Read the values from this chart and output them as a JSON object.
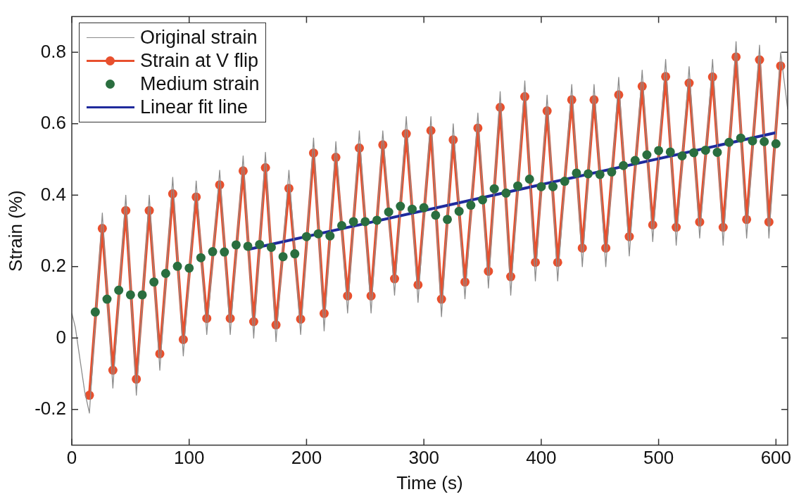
{
  "chart_data": {
    "type": "line",
    "xlabel": "Time (s)",
    "ylabel": "Strain (%)",
    "xlim": [
      0,
      610
    ],
    "ylim": [
      -0.3,
      0.9
    ],
    "xticks": [
      0,
      100,
      200,
      300,
      400,
      500,
      600
    ],
    "yticks": [
      -0.2,
      0,
      0.2,
      0.4,
      0.6,
      0.8
    ],
    "grid": false,
    "legend": "top left",
    "series": [
      {
        "name": "Original strain",
        "marker": "none",
        "color": "#8c8c8c",
        "x": [
          0,
          3,
          7,
          11,
          15,
          26,
          35,
          46,
          55,
          66,
          75,
          86,
          95,
          106,
          115,
          126,
          135,
          146,
          155,
          165,
          174,
          185,
          195,
          206,
          215,
          225,
          235,
          245,
          255,
          265,
          275,
          285,
          295,
          306,
          315,
          325,
          335,
          346,
          355,
          365,
          374,
          386,
          395,
          405,
          414,
          426,
          435,
          445,
          455,
          466,
          475,
          486,
          495,
          506,
          515,
          526,
          535,
          546,
          555,
          566,
          575,
          586,
          594,
          604,
          610
        ],
        "values": [
          0.07,
          0.03,
          -0.06,
          -0.15,
          -0.21,
          0.35,
          -0.14,
          0.4,
          -0.16,
          0.4,
          -0.09,
          0.45,
          -0.05,
          0.44,
          0.01,
          0.47,
          0.01,
          0.51,
          0,
          0.52,
          -0.01,
          0.47,
          0.01,
          0.56,
          0.02,
          0.55,
          0.07,
          0.58,
          0.07,
          0.58,
          0.12,
          0.62,
          0.1,
          0.62,
          0.06,
          0.6,
          0.11,
          0.63,
          0.14,
          0.69,
          0.12,
          0.72,
          0.16,
          0.68,
          0.16,
          0.71,
          0.2,
          0.71,
          0.2,
          0.73,
          0.23,
          0.75,
          0.27,
          0.78,
          0.26,
          0.76,
          0.28,
          0.78,
          0.26,
          0.83,
          0.28,
          0.82,
          0.28,
          0.8,
          0.64
        ]
      },
      {
        "name": "Strain at V flip",
        "marker": "circle",
        "color": "#e8502e",
        "x": [
          15,
          26,
          35,
          46,
          55,
          66,
          75,
          86,
          95,
          106,
          115,
          126,
          135,
          146,
          155,
          165,
          174,
          185,
          195,
          206,
          215,
          225,
          235,
          245,
          255,
          265,
          275,
          285,
          295,
          306,
          315,
          325,
          335,
          346,
          355,
          365,
          374,
          386,
          395,
          405,
          414,
          426,
          435,
          445,
          455,
          466,
          475,
          486,
          495,
          506,
          515,
          526,
          535,
          546,
          555,
          566,
          575,
          586,
          594,
          604
        ],
        "values": [
          -0.16,
          0.307,
          -0.09,
          0.357,
          -0.115,
          0.357,
          -0.044,
          0.404,
          -0.004,
          0.395,
          0.055,
          0.429,
          0.055,
          0.468,
          0.046,
          0.477,
          0.037,
          0.419,
          0.053,
          0.518,
          0.069,
          0.506,
          0.118,
          0.532,
          0.118,
          0.541,
          0.166,
          0.572,
          0.149,
          0.581,
          0.109,
          0.555,
          0.157,
          0.588,
          0.187,
          0.646,
          0.172,
          0.676,
          0.212,
          0.636,
          0.212,
          0.667,
          0.252,
          0.667,
          0.252,
          0.681,
          0.284,
          0.705,
          0.317,
          0.732,
          0.31,
          0.714,
          0.325,
          0.731,
          0.31,
          0.787,
          0.332,
          0.779,
          0.325,
          0.762
        ]
      },
      {
        "name": "Medium strain",
        "type": "scatter",
        "marker": "circle",
        "color": "#2a6e3f",
        "x": [
          20,
          30,
          40,
          50,
          60,
          70,
          80,
          90,
          100,
          110,
          120,
          130,
          140,
          150,
          160,
          170,
          180,
          190,
          200,
          210,
          220,
          230,
          240,
          250,
          260,
          270,
          280,
          290,
          300,
          310,
          320,
          330,
          340,
          350,
          360,
          370,
          380,
          390,
          400,
          410,
          420,
          430,
          440,
          450,
          460,
          470,
          480,
          490,
          500,
          510,
          520,
          530,
          540,
          550,
          560,
          570,
          580,
          590,
          600
        ],
        "values": [
          0.073,
          0.109,
          0.134,
          0.121,
          0.121,
          0.157,
          0.181,
          0.201,
          0.196,
          0.225,
          0.242,
          0.241,
          0.261,
          0.257,
          0.262,
          0.254,
          0.228,
          0.236,
          0.284,
          0.292,
          0.286,
          0.315,
          0.326,
          0.326,
          0.33,
          0.353,
          0.369,
          0.361,
          0.365,
          0.344,
          0.332,
          0.355,
          0.372,
          0.387,
          0.418,
          0.406,
          0.426,
          0.445,
          0.424,
          0.424,
          0.439,
          0.462,
          0.46,
          0.458,
          0.465,
          0.483,
          0.497,
          0.513,
          0.525,
          0.521,
          0.51,
          0.519,
          0.526,
          0.52,
          0.548,
          0.56,
          0.552,
          0.55,
          0.544
        ]
      },
      {
        "name": "Linear fit line",
        "marker": "none",
        "color": "#1f2a9c",
        "x": [
          150,
          600
        ],
        "values": [
          0.248,
          0.575
        ]
      }
    ]
  }
}
